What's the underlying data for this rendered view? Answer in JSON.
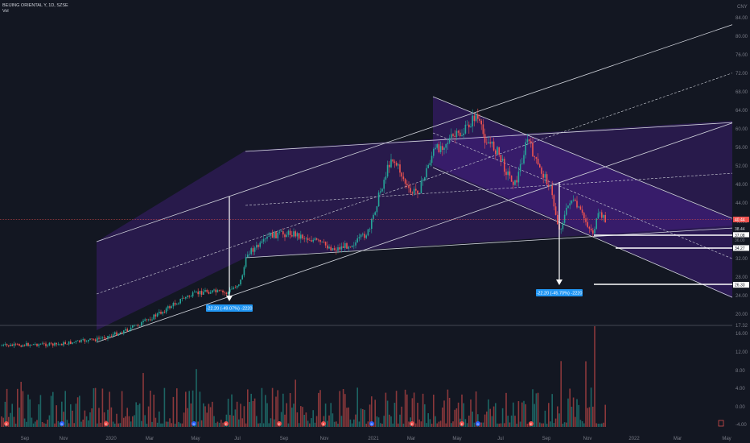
{
  "header": {
    "symbol_line": "BEIJING ORIENTAL Y, 1D, SZSE",
    "volume_label": "Vol",
    "currency": "CNY"
  },
  "colors": {
    "background": "#131722",
    "up": "#26a69a",
    "down": "#ef5350",
    "channel_fill": "#3b1e6e",
    "line": "#d1d4dc",
    "measure_box": "#2196f3",
    "price_tag": "#ef5350"
  },
  "chart_data": {
    "type": "candlestick",
    "title": "BEIJING ORIENTAL Y, 1D, SZSE",
    "price_axis": {
      "ticks": [
        "84.00",
        "80.00",
        "76.00",
        "72.00",
        "68.00",
        "64.00",
        "60.00",
        "56.00",
        "52.00",
        "48.00",
        "44.00",
        "40.00",
        "36.00",
        "32.00",
        "28.00",
        "24.00",
        "20.00"
      ],
      "range": [
        18,
        86
      ]
    },
    "volume_axis": {
      "ticks": [
        "17.32",
        "16.00",
        "12.00",
        "8.00",
        "4.00",
        "0.00",
        "-4.00"
      ]
    },
    "time_axis": {
      "labels": [
        "Sep",
        "Nov",
        "2020",
        "Mar",
        "May",
        "Jul",
        "Sep",
        "Nov",
        "2021",
        "Mar",
        "May",
        "Jul",
        "Sep",
        "Nov",
        "2022",
        "Mar",
        "May"
      ]
    },
    "price_tags": {
      "last": "40.44",
      "tag_38": "38.44",
      "tag_37": "37.08",
      "tag_36": "36.00",
      "tag_34": "34.27",
      "tag_26": "26.33"
    },
    "measurements": [
      {
        "label": "-22.20 (-49.07%) -2220"
      },
      {
        "label": "-22.20 (-45.70%) -2220"
      }
    ],
    "price_path": [
      [
        "2019-08-01",
        13.2
      ],
      [
        "2019-09-01",
        13.5
      ],
      [
        "2019-10-01",
        13.4
      ],
      [
        "2019-11-01",
        14.0
      ],
      [
        "2019-12-01",
        14.6
      ],
      [
        "2020-01-01",
        16.0
      ],
      [
        "2020-02-01",
        18.0
      ],
      [
        "2020-03-01",
        20.5
      ],
      [
        "2020-04-01",
        23.5
      ],
      [
        "2020-05-01",
        25.0
      ],
      [
        "2020-06-01",
        24.5
      ],
      [
        "2020-06-20",
        27.0
      ],
      [
        "2020-07-01",
        33.5
      ],
      [
        "2020-07-20",
        35.0
      ],
      [
        "2020-08-01",
        37.0
      ],
      [
        "2020-09-01",
        37.5
      ],
      [
        "2020-10-01",
        36.0
      ],
      [
        "2020-11-01",
        34.0
      ],
      [
        "2020-12-01",
        35.5
      ],
      [
        "2020-12-20",
        38.0
      ],
      [
        "2021-01-01",
        45.0
      ],
      [
        "2021-01-20",
        54.0
      ],
      [
        "2021-02-01",
        51.0
      ],
      [
        "2021-02-15",
        46.0
      ],
      [
        "2021-03-01",
        47.0
      ],
      [
        "2021-03-20",
        55.0
      ],
      [
        "2021-04-15",
        58.0
      ],
      [
        "2021-05-01",
        59.0
      ],
      [
        "2021-05-20",
        63.0
      ],
      [
        "2021-06-01",
        58.0
      ],
      [
        "2021-06-20",
        55.0
      ],
      [
        "2021-07-01",
        51.0
      ],
      [
        "2021-07-15",
        48.0
      ],
      [
        "2021-08-01",
        58.0
      ],
      [
        "2021-08-15",
        52.0
      ],
      [
        "2021-09-01",
        48.0
      ],
      [
        "2021-09-15",
        38.0
      ],
      [
        "2021-10-01",
        45.0
      ],
      [
        "2021-10-15",
        42.0
      ],
      [
        "2021-11-01",
        37.5
      ],
      [
        "2021-11-10",
        41.5
      ],
      [
        "2021-11-20",
        40.4
      ]
    ]
  },
  "volume_badges": [
    "E",
    "D",
    "E",
    "D",
    "E",
    "E",
    "E",
    "D",
    "E",
    "E",
    "D",
    "E"
  ]
}
